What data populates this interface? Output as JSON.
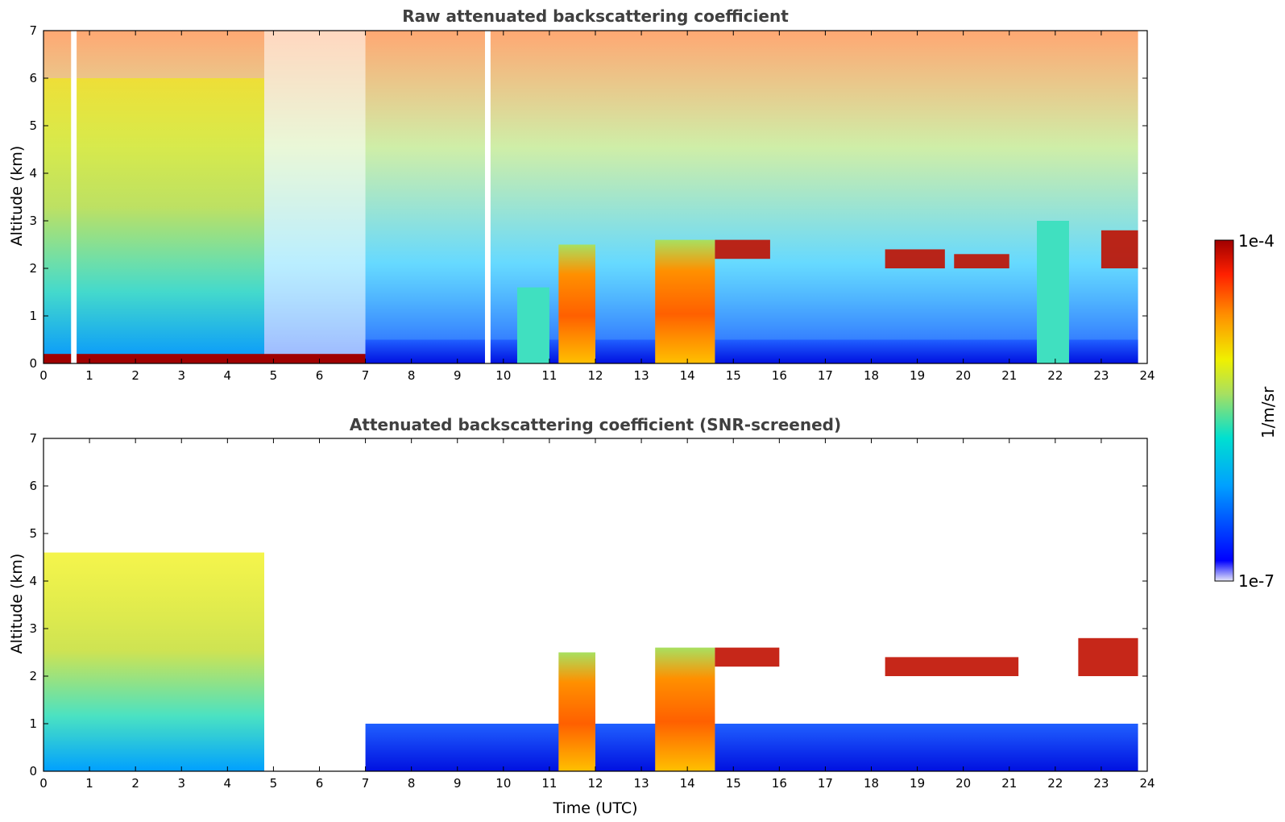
{
  "chart_data": [
    {
      "type": "heatmap",
      "title": "Raw attenuated backscattering coefficient",
      "xlabel": "",
      "ylabel": "Altitude (km)",
      "xlim": [
        0,
        24
      ],
      "ylim": [
        0,
        7
      ],
      "x_ticks": [
        "0",
        "1",
        "2",
        "3",
        "4",
        "5",
        "6",
        "7",
        "8",
        "9",
        "10",
        "11",
        "12",
        "13",
        "14",
        "15",
        "16",
        "17",
        "18",
        "19",
        "20",
        "21",
        "22",
        "23",
        "24"
      ],
      "y_ticks": [
        "0",
        "1",
        "2",
        "3",
        "4",
        "5",
        "6",
        "7"
      ],
      "data_gaps_hours": [
        [
          0.6,
          0.72
        ],
        [
          9.6,
          9.72
        ]
      ],
      "features": [
        {
          "kind": "surface_layer",
          "x": [
            0,
            7
          ],
          "altitude_km": [
            0.0,
            0.2
          ],
          "level": "high"
        },
        {
          "kind": "boundary_layer",
          "x": [
            7,
            23.8
          ],
          "altitude_km": [
            0,
            0.5
          ],
          "level": "low"
        },
        {
          "kind": "aerosol_plume",
          "x": [
            10.3,
            11.0
          ],
          "altitude_km": [
            0,
            1.6
          ],
          "level": "medium"
        },
        {
          "kind": "aerosol_plume",
          "x": [
            11.2,
            12.0
          ],
          "altitude_km": [
            0,
            2.5
          ],
          "level": "high"
        },
        {
          "kind": "aerosol_plume",
          "x": [
            13.3,
            14.6
          ],
          "altitude_km": [
            0,
            2.6
          ],
          "level": "high"
        },
        {
          "kind": "cloud_layer",
          "x": [
            14.6,
            15.8
          ],
          "altitude_km": [
            2.2,
            2.6
          ],
          "level": "high"
        },
        {
          "kind": "cloud_layer",
          "x": [
            18.3,
            19.6
          ],
          "altitude_km": [
            2.0,
            2.4
          ],
          "level": "high"
        },
        {
          "kind": "cloud_layer",
          "x": [
            19.8,
            21.0
          ],
          "altitude_km": [
            2.0,
            2.3
          ],
          "level": "high"
        },
        {
          "kind": "aerosol_plume",
          "x": [
            21.6,
            22.3
          ],
          "altitude_km": [
            0,
            3.0
          ],
          "level": "medium"
        },
        {
          "kind": "cloud_layer",
          "x": [
            23.0,
            23.8
          ],
          "altitude_km": [
            2.0,
            2.8
          ],
          "level": "high"
        }
      ]
    },
    {
      "type": "heatmap",
      "title": "Attenuated backscattering coefficient (SNR-screened)",
      "xlabel": "Time (UTC)",
      "ylabel": "Altitude (km)",
      "xlim": [
        0,
        24
      ],
      "ylim": [
        0,
        7
      ],
      "x_ticks": [
        "0",
        "1",
        "2",
        "3",
        "4",
        "5",
        "6",
        "7",
        "8",
        "9",
        "10",
        "11",
        "12",
        "13",
        "14",
        "15",
        "16",
        "17",
        "18",
        "19",
        "20",
        "21",
        "22",
        "23",
        "24"
      ],
      "y_ticks": [
        "0",
        "1",
        "2",
        "3",
        "4",
        "5",
        "6",
        "7"
      ],
      "features": [
        {
          "kind": "aerosol_region",
          "x": [
            0,
            4.8
          ],
          "altitude_km": [
            0,
            4.6
          ],
          "level": "medium"
        },
        {
          "kind": "boundary_layer",
          "x": [
            7,
            23.8
          ],
          "altitude_km": [
            0,
            1.0
          ],
          "level": "low"
        },
        {
          "kind": "aerosol_plume",
          "x": [
            11.2,
            12.0
          ],
          "altitude_km": [
            0,
            2.5
          ],
          "level": "high"
        },
        {
          "kind": "aerosol_plume",
          "x": [
            13.3,
            14.6
          ],
          "altitude_km": [
            0,
            2.6
          ],
          "level": "high"
        },
        {
          "kind": "cloud_layer",
          "x": [
            14.6,
            16.0
          ],
          "altitude_km": [
            2.2,
            2.6
          ],
          "level": "high"
        },
        {
          "kind": "cloud_layer",
          "x": [
            18.3,
            21.2
          ],
          "altitude_km": [
            2.0,
            2.4
          ],
          "level": "high"
        },
        {
          "kind": "cloud_layer",
          "x": [
            22.5,
            23.8
          ],
          "altitude_km": [
            2.0,
            2.8
          ],
          "level": "high"
        }
      ]
    }
  ],
  "colorbar": {
    "max_label": "1e-4",
    "min_label": "1e-7",
    "unit_label": "1/m/sr",
    "scale": "log",
    "colors": [
      "#e6e6f8",
      "#0000ff",
      "#00a0ff",
      "#00e0d0",
      "#a8e060",
      "#f0f000",
      "#ff9000",
      "#ff2000",
      "#a00000"
    ]
  }
}
